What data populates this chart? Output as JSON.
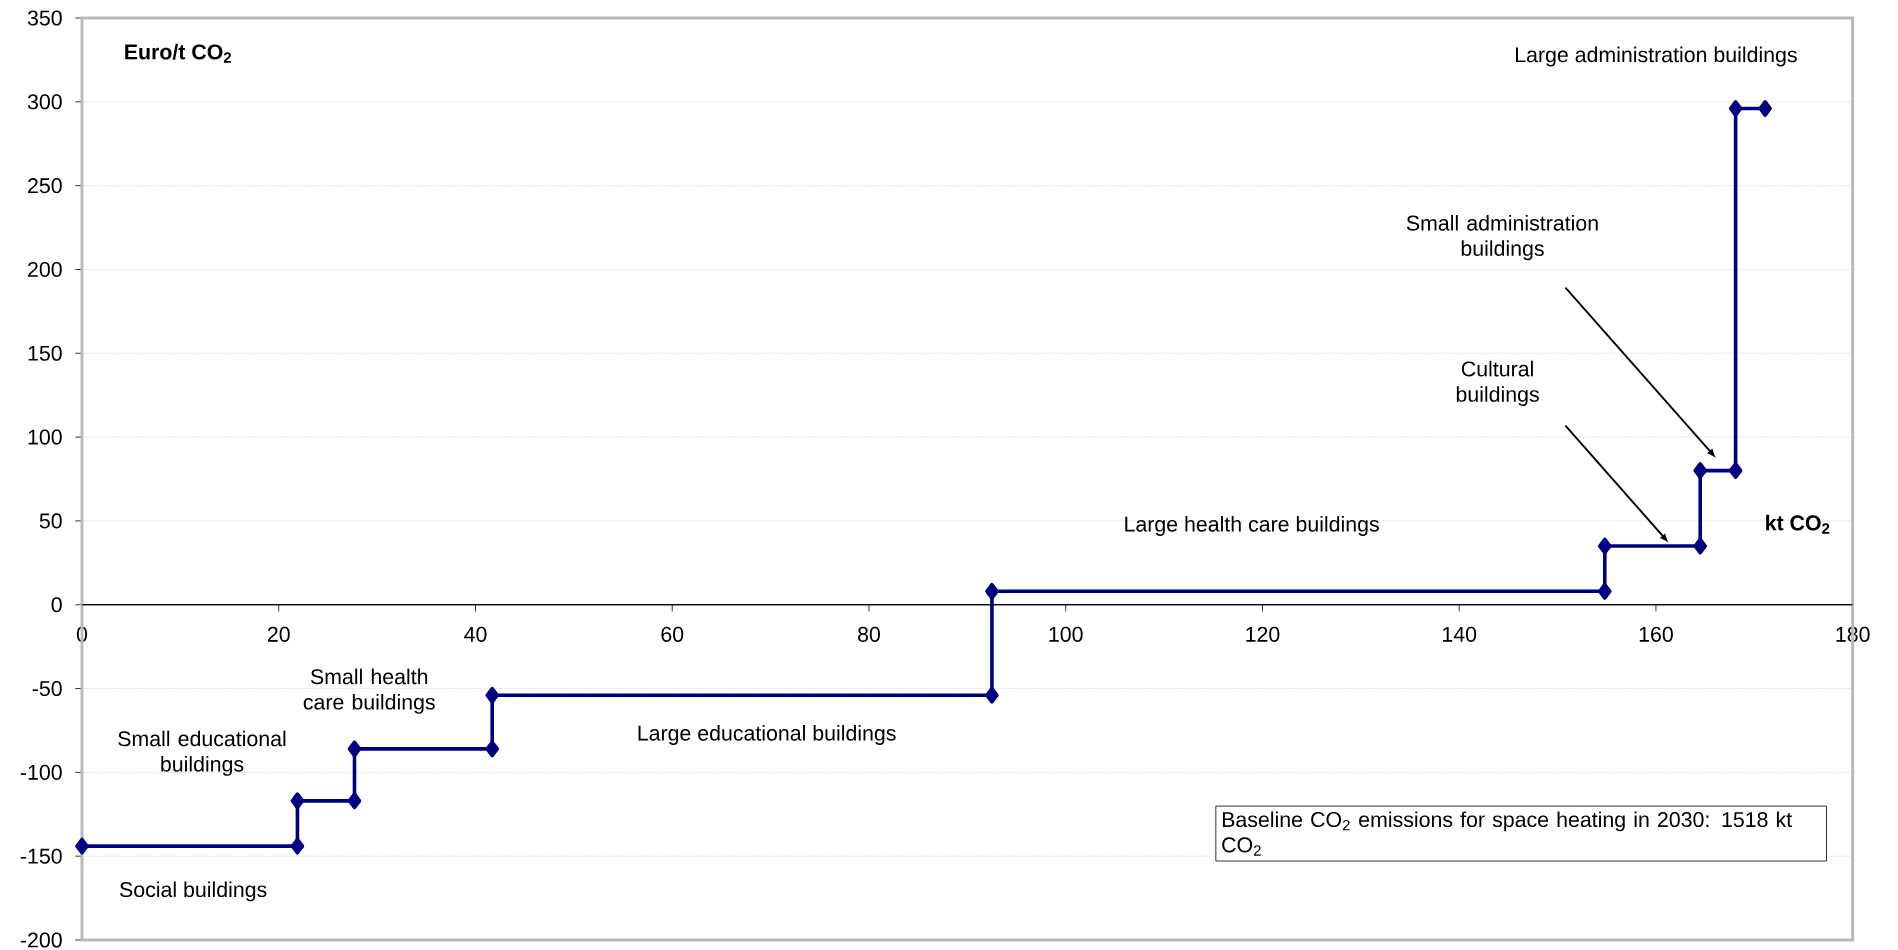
{
  "chart_data": {
    "type": "line",
    "x": [
      0,
      21.9,
      21.9,
      27.7,
      27.7,
      41.7,
      41.7,
      92.5,
      92.5,
      154.8,
      154.8,
      164.5,
      164.5,
      168.1,
      168.1,
      171.1
    ],
    "values": [
      -144,
      -144,
      -117,
      -117,
      -86,
      -86,
      -54,
      -54,
      8,
      8,
      35,
      35,
      80,
      80,
      296,
      296
    ],
    "color": "#000080",
    "marker": "diamond",
    "line_style": "solid",
    "xlabel": "kt CO$_{2}$",
    "ylabel": "Euro/t CO$_{2}$",
    "xlim": [
      0,
      180
    ],
    "xticks": [
      0,
      20,
      40,
      60,
      80,
      100,
      120,
      140,
      160,
      180
    ],
    "ylim": [
      -200,
      350
    ],
    "yticks": [
      -200,
      -150,
      -100,
      -50,
      0,
      50,
      100,
      150,
      200,
      250,
      300,
      350
    ],
    "grid": "y",
    "annotations": [
      "Large administration buildings",
      "Small administration buildings",
      "Cultural buildings",
      "Large health care buildings",
      "Large educational buildings",
      "Small health care buildings",
      "Small educational buildings",
      "Social buildings",
      "Baseline CO$_{2}$ emissions for space heating  in 2030: 1518 kt CO$_{2}$"
    ]
  }
}
